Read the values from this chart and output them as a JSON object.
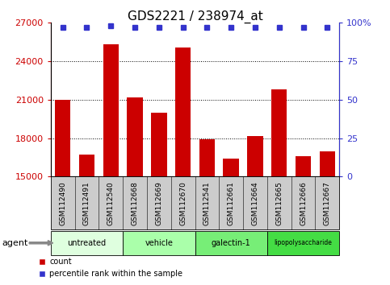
{
  "title": "GDS2221 / 238974_at",
  "samples": [
    "GSM112490",
    "GSM112491",
    "GSM112540",
    "GSM112668",
    "GSM112669",
    "GSM112670",
    "GSM112541",
    "GSM112661",
    "GSM112664",
    "GSM112665",
    "GSM112666",
    "GSM112667"
  ],
  "counts": [
    21000,
    16700,
    25300,
    21200,
    20000,
    25100,
    17900,
    16400,
    18200,
    21800,
    16600,
    17000
  ],
  "percentile_ranks": [
    97,
    97,
    98,
    97,
    97,
    97,
    97,
    97,
    97,
    97,
    97,
    97
  ],
  "ylim_left": [
    15000,
    27000
  ],
  "ylim_right": [
    0,
    100
  ],
  "yticks_left": [
    15000,
    18000,
    21000,
    24000,
    27000
  ],
  "yticks_right": [
    0,
    25,
    50,
    75,
    100
  ],
  "bar_color": "#cc0000",
  "dot_color": "#3333cc",
  "groups": [
    {
      "label": "untreated",
      "start": 0,
      "end": 3,
      "color": "#dfffdf"
    },
    {
      "label": "vehicle",
      "start": 3,
      "end": 6,
      "color": "#aaffaa"
    },
    {
      "label": "galectin-1",
      "start": 6,
      "end": 9,
      "color": "#77ee77"
    },
    {
      "label": "lipopolysaccharide",
      "start": 9,
      "end": 12,
      "color": "#44dd44"
    }
  ],
  "tick_bg_color": "#cccccc",
  "plot_bg": "#ffffff",
  "title_fontsize": 11,
  "tick_fontsize": 8,
  "sample_fontsize": 6.5
}
